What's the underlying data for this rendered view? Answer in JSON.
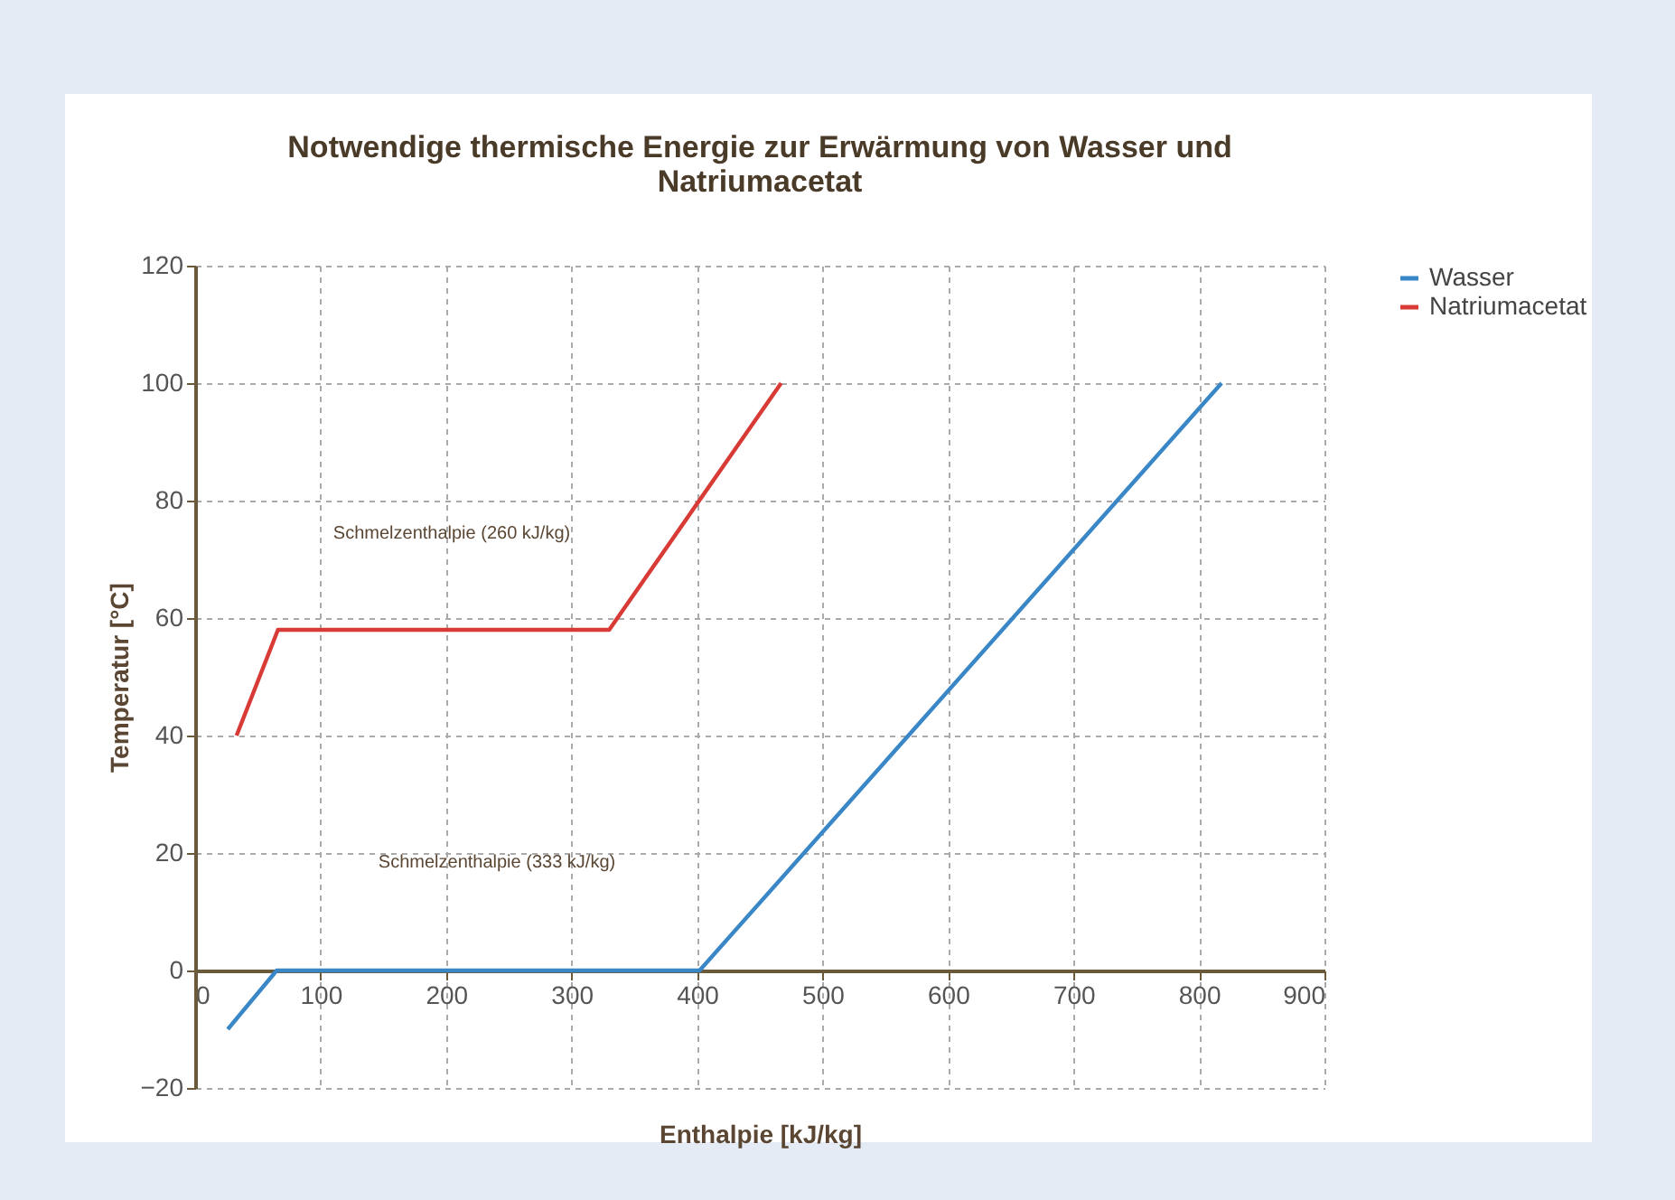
{
  "chart_data": {
    "type": "line",
    "title": [
      "Notwendige thermische Energie zur Erwärmung von Wasser und",
      "Natriumacetat"
    ],
    "xlabel": "Enthalpie  [kJ/kg]",
    "ylabel": "Temperatur  [°C]",
    "series": [
      {
        "name": "Wasser",
        "color": "#3a87c8",
        "x": [
          26,
          65,
          402,
          818
        ],
        "values": [
          -10,
          0,
          0,
          100
        ]
      },
      {
        "name": "Natriumacetat",
        "color": "#d83a36",
        "x": [
          33,
          66,
          330,
          467
        ],
        "values": [
          40,
          58,
          58,
          100
        ]
      }
    ],
    "xlim": [
      0,
      900
    ],
    "xticks": [
      0,
      100,
      200,
      300,
      400,
      500,
      600,
      700,
      800,
      900
    ],
    "ylim": [
      -20,
      120
    ],
    "yticks": [
      -20,
      0,
      20,
      40,
      60,
      80,
      100,
      120
    ],
    "grid": true,
    "legend": "right",
    "line_style": "solid",
    "marker": "none",
    "annotations": [
      "Schmelzenthalpie (260 kJ/kg)",
      "Schmelzenthalpie (333 kJ/kg)"
    ]
  }
}
